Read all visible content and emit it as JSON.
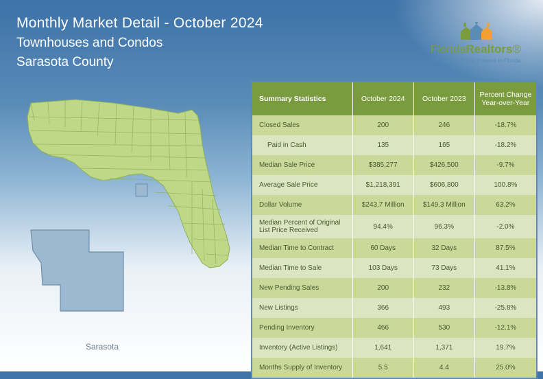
{
  "header": {
    "title": "Monthly Market Detail - October 2024",
    "subtitle": "Townhouses and Condos",
    "county": "Sarasota County"
  },
  "logo": {
    "brand_pre": "Florida",
    "brand_bold": "Realtors",
    "reg": "®",
    "tagline": "The Voice for Real Estate® in Florida"
  },
  "map": {
    "county_label": "Sarasota"
  },
  "table": {
    "header": {
      "label": "Summary Statistics",
      "col1": "October 2024",
      "col2": "October 2023",
      "col3_l1": "Percent Change",
      "col3_l2": "Year-over-Year"
    },
    "rows": [
      {
        "label": "Closed Sales",
        "v1": "200",
        "v2": "246",
        "v3": "-18.7%"
      },
      {
        "label": "Paid in Cash",
        "v1": "135",
        "v2": "165",
        "v3": "-18.2%",
        "indent": true
      },
      {
        "label": "Median Sale Price",
        "v1": "$385,277",
        "v2": "$426,500",
        "v3": "-9.7%"
      },
      {
        "label": "Average Sale Price",
        "v1": "$1,218,391",
        "v2": "$606,800",
        "v3": "100.8%"
      },
      {
        "label": "Dollar Volume",
        "v1": "$243.7 Million",
        "v2": "$149.3 Million",
        "v3": "63.2%"
      },
      {
        "label": "Median Percent of Original List Price Received",
        "v1": "94.4%",
        "v2": "96.3%",
        "v3": "-2.0%",
        "tall": true
      },
      {
        "label": "Median Time to Contract",
        "v1": "60 Days",
        "v2": "32 Days",
        "v3": "87.5%"
      },
      {
        "label": "Median Time to Sale",
        "v1": "103 Days",
        "v2": "73 Days",
        "v3": "41.1%"
      },
      {
        "label": "New Pending Sales",
        "v1": "200",
        "v2": "232",
        "v3": "-13.8%"
      },
      {
        "label": "New Listings",
        "v1": "366",
        "v2": "493",
        "v3": "-25.8%"
      },
      {
        "label": "Pending Inventory",
        "v1": "466",
        "v2": "530",
        "v3": "-12.1%"
      },
      {
        "label": "Inventory (Active Listings)",
        "v1": "1,641",
        "v2": "1,371",
        "v3": "19.7%"
      },
      {
        "label": "Months Supply of Inventory",
        "v1": "5.5",
        "v2": "4.4",
        "v3": "25.0%"
      }
    ]
  },
  "colors": {
    "header_green": "#7a9b3e",
    "row_light": "#dce5c1",
    "row_dark": "#cad99a",
    "border_blue": "#5a8cb8",
    "text_dark": "#4a5a2e",
    "fl_fill": "#bfd888",
    "fl_stroke": "#8fb058",
    "county_fill": "#9db9d1",
    "county_stroke": "#6b8fa8"
  }
}
